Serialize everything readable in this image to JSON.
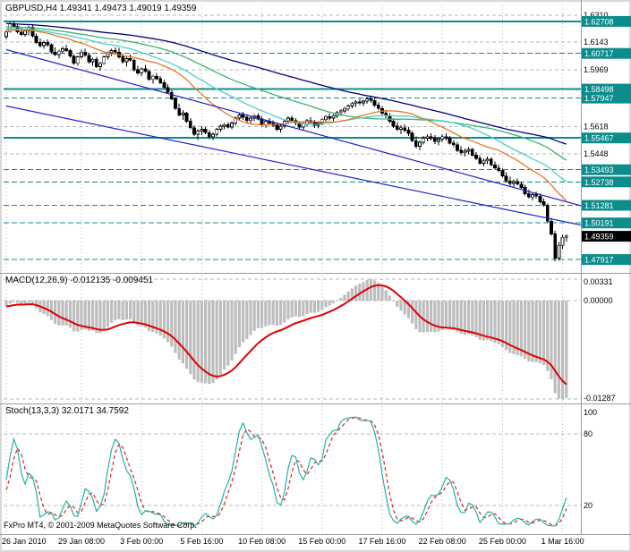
{
  "price_chart": {
    "header": "GBPUSD,H4 1.49341 1.49473 1.49019 1.49359"
  },
  "footer": {
    "copyright": "FxPro MT4, © 2001-2009 MetaQuotes Software Corp."
  },
  "chart_data": [
    {
      "type": "candlestick",
      "header": "GBPUSD,H4 1.49341 1.49473 1.49019 1.49359",
      "symbol": "GBPUSD",
      "timeframe": "H4",
      "ohlc_current": {
        "open": "1.49341",
        "high": "1.49473",
        "low": "1.49019",
        "close": "1.49359"
      },
      "ylim": [
        1.472,
        1.637
      ],
      "colors": {
        "grid": "#b6b6b6",
        "level": "#0d8c8c",
        "bull": "#ffffff",
        "bear": "#000000",
        "wick": "#000000"
      },
      "x_labels": [
        {
          "i": 0,
          "t": "26 Jan 2010"
        },
        {
          "i": 20,
          "t": "29 Jan 08:00"
        },
        {
          "i": 36,
          "t": "3 Feb 00:00"
        },
        {
          "i": 52,
          "t": "5 Feb 16:00"
        },
        {
          "i": 68,
          "t": "10 Feb 08:00"
        },
        {
          "i": 84,
          "t": "15 Feb 00:00"
        },
        {
          "i": 100,
          "t": "17 Feb 16:00"
        },
        {
          "i": 116,
          "t": "22 Feb 08:00"
        },
        {
          "i": 132,
          "t": "25 Feb 00:00"
        },
        {
          "i": 148,
          "t": "1 Mar 16:00"
        }
      ],
      "plain_labels": [
        {
          "price": 1.631,
          "text": "1.6310"
        },
        {
          "price": 1.6143,
          "text": "1.6143"
        },
        {
          "price": 1.5969,
          "text": "1.5969"
        },
        {
          "price": 1.5618,
          "text": "1.5618"
        },
        {
          "price": 1.5448,
          "text": "1.5448"
        }
      ],
      "grid_levels": [
        1.631,
        1.6143,
        1.5969,
        1.5618,
        1.5448
      ],
      "hlines": [
        {
          "price": 1.62708,
          "label": "1.62708",
          "style": "solid",
          "width": 2
        },
        {
          "price": 1.60717,
          "label": "1.60717",
          "style": "dash",
          "width": 1
        },
        {
          "price": 1.58498,
          "label": "1.58498",
          "style": "solid",
          "width": 2
        },
        {
          "price": 1.57947,
          "label": "1.57947",
          "style": "dash",
          "width": 1
        },
        {
          "price": 1.55467,
          "label": "1.55467",
          "style": "solid",
          "width": 2
        },
        {
          "price": 1.53493,
          "label": "1.53493",
          "style": "dash",
          "width": 1
        },
        {
          "price": 1.52738,
          "label": "1.52738",
          "style": "dash",
          "width": 1
        },
        {
          "price": 1.51281,
          "label": "1.51281",
          "style": "dash",
          "width": 1
        },
        {
          "price": 1.50191,
          "label": "1.50191",
          "style": "dash",
          "width": 1
        },
        {
          "price": 1.47917,
          "label": "1.47917",
          "style": "dash",
          "width": 1
        }
      ],
      "current_price": {
        "value": 1.49359,
        "label": "1.49359"
      },
      "moving_averages": [
        {
          "period": 89,
          "color": "#000080"
        },
        {
          "period": 55,
          "color": "#3cb371"
        },
        {
          "period": 34,
          "color": "#48d1cc"
        },
        {
          "period": 21,
          "color": "#e87722"
        }
      ],
      "trendlines": [
        {
          "i1": 0,
          "p1": 1.6095,
          "i2": 153,
          "p2": 1.5125,
          "color": "#2222cc"
        },
        {
          "i1": 0,
          "p1": 1.5745,
          "i2": 153,
          "p2": 1.5005,
          "color": "#2222cc"
        }
      ],
      "candles": [
        [
          1.6175,
          1.6215,
          1.616,
          1.6205
        ],
        [
          1.6205,
          1.6268,
          1.62,
          1.6255
        ],
        [
          1.6255,
          1.627,
          1.623,
          1.624
        ],
        [
          1.624,
          1.6252,
          1.6195,
          1.6205
        ],
        [
          1.6205,
          1.623,
          1.618,
          1.619
        ],
        [
          1.619,
          1.6218,
          1.6175,
          1.621
        ],
        [
          1.621,
          1.6245,
          1.6185,
          1.6235
        ],
        [
          1.6235,
          1.625,
          1.617,
          1.618
        ],
        [
          1.618,
          1.6195,
          1.613,
          1.614
        ],
        [
          1.614,
          1.6165,
          1.611,
          1.612
        ],
        [
          1.612,
          1.615,
          1.61,
          1.614
        ],
        [
          1.614,
          1.616,
          1.6115,
          1.6125
        ],
        [
          1.6125,
          1.6135,
          1.607,
          1.608
        ],
        [
          1.608,
          1.611,
          1.6055,
          1.6065
        ],
        [
          1.6065,
          1.6095,
          1.604,
          1.6085
        ],
        [
          1.6085,
          1.6115,
          1.607,
          1.61
        ],
        [
          1.61,
          1.6125,
          1.608,
          1.609
        ],
        [
          1.609,
          1.61,
          1.6045,
          1.6055
        ],
        [
          1.6055,
          1.6065,
          1.6,
          1.601
        ],
        [
          1.601,
          1.606,
          1.5995,
          1.605
        ],
        [
          1.605,
          1.6095,
          1.604,
          1.608
        ],
        [
          1.608,
          1.61,
          1.605,
          1.606
        ],
        [
          1.606,
          1.6075,
          1.601,
          1.602
        ],
        [
          1.602,
          1.6045,
          1.5995,
          1.6035
        ],
        [
          1.6035,
          1.605,
          1.598,
          1.599
        ],
        [
          1.599,
          1.602,
          1.5965,
          1.601
        ],
        [
          1.601,
          1.606,
          1.6,
          1.605
        ],
        [
          1.605,
          1.6085,
          1.6035,
          1.6075
        ],
        [
          1.6075,
          1.61,
          1.6055,
          1.609
        ],
        [
          1.609,
          1.611,
          1.607,
          1.608
        ],
        [
          1.608,
          1.6105,
          1.604,
          1.605
        ],
        [
          1.605,
          1.607,
          1.601,
          1.602
        ],
        [
          1.602,
          1.605,
          1.599,
          1.604
        ],
        [
          1.604,
          1.6065,
          1.602,
          1.603
        ],
        [
          1.603,
          1.604,
          1.596,
          1.597
        ],
        [
          1.597,
          1.5995,
          1.594,
          1.595
        ],
        [
          1.595,
          1.5985,
          1.593,
          1.5975
        ],
        [
          1.5975,
          1.6,
          1.595,
          1.596
        ],
        [
          1.596,
          1.597,
          1.59,
          1.591
        ],
        [
          1.591,
          1.594,
          1.5885,
          1.593
        ],
        [
          1.593,
          1.595,
          1.5905,
          1.5915
        ],
        [
          1.5915,
          1.593,
          1.588,
          1.589
        ],
        [
          1.589,
          1.5905,
          1.585,
          1.586
        ],
        [
          1.586,
          1.588,
          1.582,
          1.583
        ],
        [
          1.583,
          1.5845,
          1.578,
          1.579
        ],
        [
          1.579,
          1.58,
          1.572,
          1.573
        ],
        [
          1.573,
          1.576,
          1.568,
          1.569
        ],
        [
          1.569,
          1.572,
          1.566,
          1.57
        ],
        [
          1.57,
          1.571,
          1.564,
          1.565
        ],
        [
          1.565,
          1.567,
          1.56,
          1.561
        ],
        [
          1.561,
          1.5625,
          1.556,
          1.557
        ],
        [
          1.557,
          1.56,
          1.5535,
          1.559
        ],
        [
          1.559,
          1.562,
          1.5565,
          1.56
        ],
        [
          1.56,
          1.5615,
          1.557,
          1.558
        ],
        [
          1.558,
          1.5595,
          1.554,
          1.5555
        ],
        [
          1.5555,
          1.558,
          1.5535,
          1.557
        ],
        [
          1.557,
          1.561,
          1.5555,
          1.56
        ],
        [
          1.56,
          1.563,
          1.5585,
          1.562
        ],
        [
          1.562,
          1.564,
          1.56,
          1.563
        ],
        [
          1.563,
          1.5645,
          1.5605,
          1.5615
        ],
        [
          1.5615,
          1.565,
          1.56,
          1.564
        ],
        [
          1.564,
          1.568,
          1.5625,
          1.567
        ],
        [
          1.567,
          1.57,
          1.5655,
          1.569
        ],
        [
          1.569,
          1.571,
          1.566,
          1.5675
        ],
        [
          1.5675,
          1.569,
          1.564,
          1.5655
        ],
        [
          1.5655,
          1.568,
          1.5635,
          1.567
        ],
        [
          1.567,
          1.5695,
          1.565,
          1.5685
        ],
        [
          1.5685,
          1.57,
          1.5655,
          1.5665
        ],
        [
          1.5665,
          1.568,
          1.562,
          1.563
        ],
        [
          1.563,
          1.566,
          1.561,
          1.565
        ],
        [
          1.565,
          1.567,
          1.563,
          1.564
        ],
        [
          1.564,
          1.5655,
          1.5615,
          1.5625
        ],
        [
          1.5625,
          1.564,
          1.559,
          1.56
        ],
        [
          1.56,
          1.563,
          1.558,
          1.562
        ],
        [
          1.562,
          1.566,
          1.5605,
          1.565
        ],
        [
          1.565,
          1.568,
          1.5635,
          1.567
        ],
        [
          1.567,
          1.5685,
          1.564,
          1.5655
        ],
        [
          1.5655,
          1.567,
          1.5625,
          1.564
        ],
        [
          1.564,
          1.565,
          1.56,
          1.5615
        ],
        [
          1.5615,
          1.5645,
          1.5595,
          1.5635
        ],
        [
          1.5635,
          1.5665,
          1.562,
          1.5655
        ],
        [
          1.5655,
          1.5675,
          1.563,
          1.5645
        ],
        [
          1.5645,
          1.566,
          1.561,
          1.5625
        ],
        [
          1.5625,
          1.565,
          1.5605,
          1.564
        ],
        [
          1.564,
          1.567,
          1.5625,
          1.566
        ],
        [
          1.566,
          1.569,
          1.5645,
          1.568
        ],
        [
          1.568,
          1.57,
          1.5655,
          1.567
        ],
        [
          1.567,
          1.5695,
          1.565,
          1.5685
        ],
        [
          1.5685,
          1.5715,
          1.567,
          1.5705
        ],
        [
          1.5705,
          1.5725,
          1.5685,
          1.5715
        ],
        [
          1.5715,
          1.574,
          1.57,
          1.573
        ],
        [
          1.573,
          1.5755,
          1.5715,
          1.5745
        ],
        [
          1.5745,
          1.577,
          1.573,
          1.576
        ],
        [
          1.576,
          1.578,
          1.574,
          1.577
        ],
        [
          1.577,
          1.579,
          1.575,
          1.5765
        ],
        [
          1.5765,
          1.5785,
          1.5745,
          1.5775
        ],
        [
          1.5775,
          1.58,
          1.576,
          1.579
        ],
        [
          1.579,
          1.5805,
          1.5765,
          1.578
        ],
        [
          1.578,
          1.5795,
          1.574,
          1.575
        ],
        [
          1.575,
          1.577,
          1.572,
          1.573
        ],
        [
          1.573,
          1.5745,
          1.569,
          1.57
        ],
        [
          1.57,
          1.572,
          1.567,
          1.5685
        ],
        [
          1.5685,
          1.57,
          1.564,
          1.565
        ],
        [
          1.565,
          1.567,
          1.561,
          1.562
        ],
        [
          1.562,
          1.5645,
          1.559,
          1.56
        ],
        [
          1.56,
          1.5625,
          1.557,
          1.561
        ],
        [
          1.561,
          1.563,
          1.558,
          1.5595
        ],
        [
          1.5595,
          1.5615,
          1.556,
          1.5575
        ],
        [
          1.5575,
          1.559,
          1.552,
          1.553
        ],
        [
          1.553,
          1.5555,
          1.548,
          1.5495
        ],
        [
          1.5495,
          1.553,
          1.547,
          1.552
        ],
        [
          1.552,
          1.556,
          1.5505,
          1.5545
        ],
        [
          1.5545,
          1.557,
          1.5525,
          1.5555
        ],
        [
          1.5555,
          1.5575,
          1.553,
          1.5545
        ],
        [
          1.5545,
          1.5565,
          1.551,
          1.5525
        ],
        [
          1.5525,
          1.555,
          1.55,
          1.554
        ],
        [
          1.554,
          1.557,
          1.552,
          1.5555
        ],
        [
          1.5555,
          1.5575,
          1.553,
          1.5545
        ],
        [
          1.5545,
          1.556,
          1.5505,
          1.5515
        ],
        [
          1.5515,
          1.5535,
          1.549,
          1.5505
        ],
        [
          1.5505,
          1.552,
          1.546,
          1.547
        ],
        [
          1.547,
          1.5495,
          1.544,
          1.5455
        ],
        [
          1.5455,
          1.548,
          1.543,
          1.5465
        ],
        [
          1.5465,
          1.549,
          1.5445,
          1.5475
        ],
        [
          1.5475,
          1.5485,
          1.543,
          1.544
        ],
        [
          1.544,
          1.546,
          1.541,
          1.542
        ],
        [
          1.542,
          1.544,
          1.538,
          1.539
        ],
        [
          1.539,
          1.542,
          1.537,
          1.5405
        ],
        [
          1.5405,
          1.543,
          1.5385,
          1.5415
        ],
        [
          1.5415,
          1.5425,
          1.537,
          1.538
        ],
        [
          1.538,
          1.54,
          1.535,
          1.536
        ],
        [
          1.536,
          1.538,
          1.5335,
          1.5345
        ],
        [
          1.5345,
          1.536,
          1.53,
          1.531
        ],
        [
          1.531,
          1.5335,
          1.527,
          1.528
        ],
        [
          1.528,
          1.5305,
          1.525,
          1.5265
        ],
        [
          1.5265,
          1.529,
          1.524,
          1.5275
        ],
        [
          1.5275,
          1.5295,
          1.525,
          1.526
        ],
        [
          1.526,
          1.5275,
          1.523,
          1.524
        ],
        [
          1.524,
          1.5255,
          1.519,
          1.52
        ],
        [
          1.52,
          1.5225,
          1.517,
          1.518
        ],
        [
          1.518,
          1.521,
          1.516,
          1.5195
        ],
        [
          1.5195,
          1.5215,
          1.517,
          1.5185
        ],
        [
          1.5185,
          1.52,
          1.514,
          1.515
        ],
        [
          1.515,
          1.517,
          1.512,
          1.513
        ],
        [
          1.513,
          1.514,
          1.502,
          1.503
        ],
        [
          1.503,
          1.505,
          1.494,
          1.495
        ],
        [
          1.495,
          1.497,
          1.478,
          1.48
        ],
        [
          1.48,
          1.49,
          1.4785,
          1.488
        ],
        [
          1.488,
          1.4945,
          1.486,
          1.493
        ],
        [
          1.493,
          1.4947,
          1.4902,
          1.4936
        ]
      ]
    },
    {
      "type": "macd",
      "header": "MACD(12,26,9) -0.012135 -0.009451",
      "params": {
        "fast": 12,
        "slow": 26,
        "signal": 9
      },
      "values": {
        "main": "-0.012135",
        "signal": "-0.009451"
      },
      "axis_labels": {
        "max": "0.00331",
        "zero": "0.00000",
        "min": "-0.01287"
      },
      "colors": {
        "histogram": "#bdbdbd",
        "signal": "#e00000"
      }
    },
    {
      "type": "stochastic",
      "header": "Stoch(13,3,3) 32.0171 34.7592",
      "params": {
        "k": 13,
        "d": 3,
        "slowing": 3
      },
      "values": {
        "k": "32.0171",
        "d": "34.7592"
      },
      "levels": [
        80,
        20
      ],
      "axis_labels": [
        "100",
        "80",
        "20"
      ],
      "colors": {
        "k": "#20b2aa",
        "d": "#dd2222",
        "levels": "#b8b8b8"
      }
    }
  ]
}
